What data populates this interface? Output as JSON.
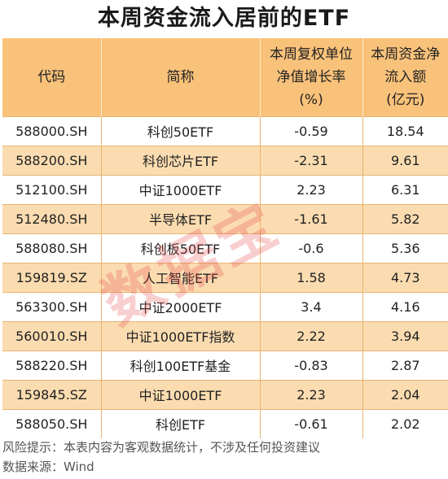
{
  "title": "本周资金流入居前的ETF",
  "headers": {
    "code": "代码",
    "name": "简称",
    "nav_growth": [
      "本周复权单位",
      "净值增长率",
      "(%)"
    ],
    "inflow": [
      "本周资金净",
      "流入额",
      "(亿元)"
    ]
  },
  "rows": [
    {
      "code": "588000.SH",
      "name": "科创50ETF",
      "nav": "-0.59",
      "inflow": "18.54"
    },
    {
      "code": "588200.SH",
      "name": "科创芯片ETF",
      "nav": "-2.31",
      "inflow": "9.61"
    },
    {
      "code": "512100.SH",
      "name": "中证1000ETF",
      "nav": "2.23",
      "inflow": "6.31"
    },
    {
      "code": "512480.SH",
      "name": "半导体ETF",
      "nav": "-1.61",
      "inflow": "5.82"
    },
    {
      "code": "588080.SH",
      "name": "科创板50ETF",
      "nav": "-0.6",
      "inflow": "5.36"
    },
    {
      "code": "159819.SZ",
      "name": "人工智能ETF",
      "nav": "1.58",
      "inflow": "4.73"
    },
    {
      "code": "563300.SH",
      "name": "中证2000ETF",
      "nav": "3.4",
      "inflow": "4.16"
    },
    {
      "code": "560010.SH",
      "name": "中证1000ETF指数",
      "nav": "2.22",
      "inflow": "3.94"
    },
    {
      "code": "588220.SH",
      "name": "科创100ETF基金",
      "nav": "-0.83",
      "inflow": "2.87"
    },
    {
      "code": "159845.SZ",
      "name": "中证1000ETF",
      "nav": "2.23",
      "inflow": "2.04"
    },
    {
      "code": "588050.SH",
      "name": "科创ETF",
      "nav": "-0.61",
      "inflow": "2.02"
    }
  ],
  "watermark": "数据宝",
  "footer": {
    "risk": "风险提示：本表内容为客观数据统计，不涉及任何投资建议",
    "source": "数据来源：Wind"
  }
}
